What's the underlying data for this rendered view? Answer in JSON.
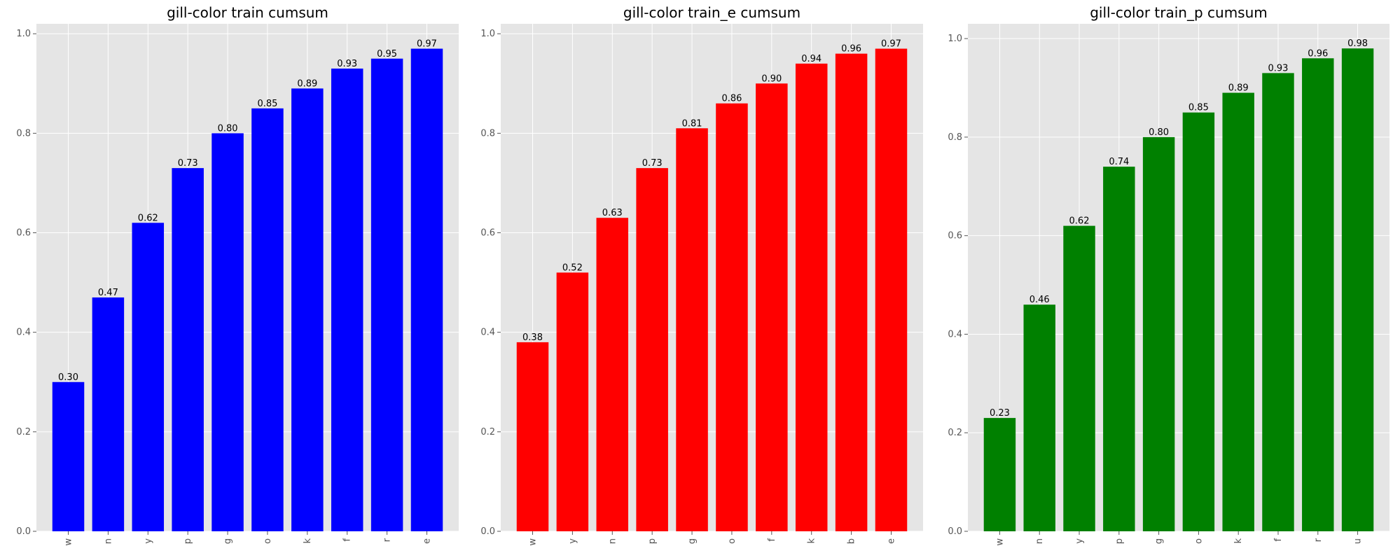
{
  "chart_data": [
    {
      "type": "bar",
      "title": "gill-color train cumsum",
      "categories": [
        "w",
        "n",
        "y",
        "p",
        "g",
        "o",
        "k",
        "f",
        "r",
        "e"
      ],
      "values": [
        0.3,
        0.47,
        0.62,
        0.73,
        0.8,
        0.85,
        0.89,
        0.93,
        0.95,
        0.97
      ],
      "value_labels": [
        "0.30",
        "0.47",
        "0.62",
        "0.73",
        "0.80",
        "0.85",
        "0.89",
        "0.93",
        "0.95",
        "0.97"
      ],
      "color": "#0000ff",
      "ylim": [
        0,
        1.02
      ],
      "yticks": [
        0.0,
        0.2,
        0.4,
        0.6,
        0.8,
        1.0
      ],
      "ytick_labels": [
        "0.0",
        "0.2",
        "0.4",
        "0.6",
        "0.8",
        "1.0"
      ],
      "grid": true,
      "xlabel": "",
      "ylabel": ""
    },
    {
      "type": "bar",
      "title": "gill-color train_e cumsum",
      "categories": [
        "w",
        "y",
        "n",
        "p",
        "g",
        "o",
        "f",
        "k",
        "b",
        "e"
      ],
      "values": [
        0.38,
        0.52,
        0.63,
        0.73,
        0.81,
        0.86,
        0.9,
        0.94,
        0.96,
        0.97
      ],
      "value_labels": [
        "0.38",
        "0.52",
        "0.63",
        "0.73",
        "0.81",
        "0.86",
        "0.90",
        "0.94",
        "0.96",
        "0.97"
      ],
      "color": "#ff0000",
      "ylim": [
        0,
        1.02
      ],
      "yticks": [
        0.0,
        0.2,
        0.4,
        0.6,
        0.8,
        1.0
      ],
      "ytick_labels": [
        "0.0",
        "0.2",
        "0.4",
        "0.6",
        "0.8",
        "1.0"
      ],
      "grid": true,
      "xlabel": "",
      "ylabel": ""
    },
    {
      "type": "bar",
      "title": "gill-color train_p cumsum",
      "categories": [
        "w",
        "n",
        "y",
        "p",
        "g",
        "o",
        "k",
        "f",
        "r",
        "u"
      ],
      "values": [
        0.23,
        0.46,
        0.62,
        0.74,
        0.8,
        0.85,
        0.89,
        0.93,
        0.96,
        0.98
      ],
      "value_labels": [
        "0.23",
        "0.46",
        "0.62",
        "0.74",
        "0.80",
        "0.85",
        "0.89",
        "0.93",
        "0.96",
        "0.98"
      ],
      "color": "#008000",
      "ylim": [
        0,
        1.03
      ],
      "yticks": [
        0.0,
        0.2,
        0.4,
        0.6,
        0.8,
        1.0
      ],
      "ytick_labels": [
        "0.0",
        "0.2",
        "0.4",
        "0.6",
        "0.8",
        "1.0"
      ],
      "grid": true,
      "xlabel": "",
      "ylabel": ""
    }
  ]
}
